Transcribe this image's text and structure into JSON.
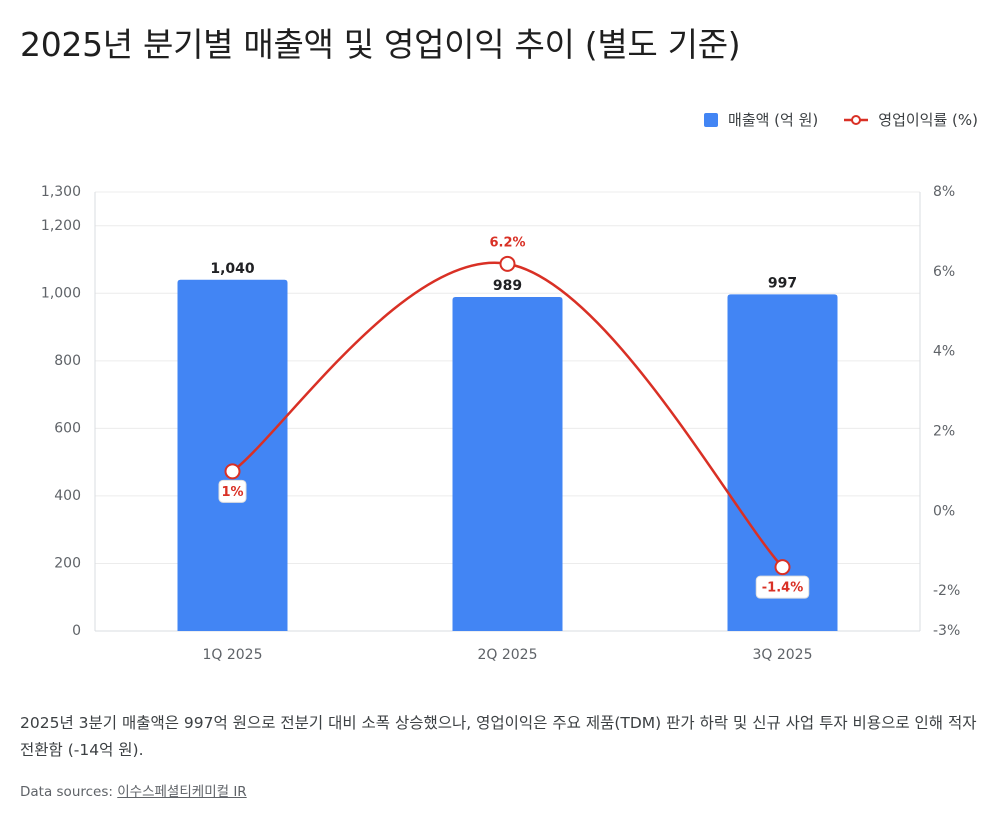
{
  "title": "2025년 분기별 매출액 및 영업이익 추이 (별도 기준)",
  "legend": {
    "bar_label": "매출액 (억 원)",
    "line_label": "영업이익률 (%)"
  },
  "colors": {
    "bar": "#4285f4",
    "line": "#d93025"
  },
  "chart_data": {
    "type": "bar",
    "categories": [
      "1Q 2025",
      "2Q 2025",
      "3Q 2025"
    ],
    "series": [
      {
        "name": "매출액 (억 원)",
        "type": "bar",
        "axis": "left",
        "values": [
          1040,
          989,
          997
        ],
        "labels": [
          "1,040",
          "989",
          "997"
        ]
      },
      {
        "name": "영업이익률 (%)",
        "type": "line",
        "axis": "right",
        "values": [
          1,
          6.2,
          -1.4
        ],
        "labels": [
          "1%",
          "6.2%",
          "-1.4%"
        ]
      }
    ],
    "y_left": {
      "ylim": [
        0,
        1300
      ],
      "ticks": [
        0,
        200,
        400,
        600,
        800,
        1000,
        1200,
        1300
      ],
      "tick_labels": [
        "0",
        "200",
        "400",
        "600",
        "800",
        "1,000",
        "1,200",
        "1,300"
      ]
    },
    "y_right": {
      "ylim": [
        -3,
        8
      ],
      "ticks": [
        -3,
        -2,
        0,
        2,
        4,
        6,
        8
      ],
      "tick_labels": [
        "-3%",
        "-2%",
        "0%",
        "2%",
        "4%",
        "6%",
        "8%"
      ]
    },
    "grid": true,
    "legend_position": "top-right"
  },
  "caption": "2025년 3분기 매출액은 997억 원으로 전분기 대비 소폭 상승했으나, 영업이익은 주요 제품(TDM) 판가 하락 및 신규 사업 투자 비용으로 인해 적자 전환함 (-14억 원).",
  "sources": {
    "prefix": "Data sources:",
    "link": "이수스페셜티케미컬 IR"
  }
}
